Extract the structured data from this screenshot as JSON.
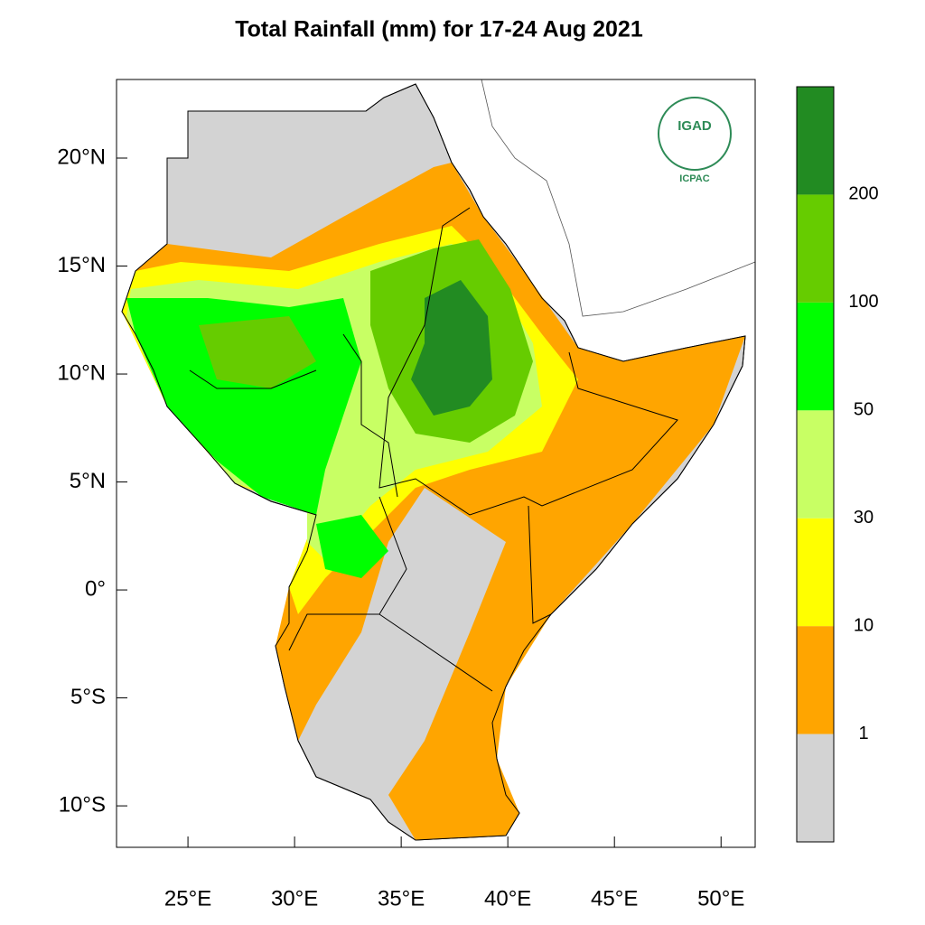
{
  "map": {
    "title": "Total Rainfall (mm) for 17-24 Aug 2021",
    "xlim": [
      21.65,
      51.6
    ],
    "ylim": [
      -11.92,
      23.64
    ],
    "xticks": [
      {
        "value": 25,
        "label": "25°E"
      },
      {
        "value": 30,
        "label": "30°E"
      },
      {
        "value": 35,
        "label": "35°E"
      },
      {
        "value": 40,
        "label": "40°E"
      },
      {
        "value": 45,
        "label": "45°E"
      },
      {
        "value": 50,
        "label": "50°E"
      }
    ],
    "yticks": [
      {
        "value": 20,
        "label": "20°N"
      },
      {
        "value": 15,
        "label": "15°N"
      },
      {
        "value": 10,
        "label": "10°N"
      },
      {
        "value": 5,
        "label": "5°N"
      },
      {
        "value": 0,
        "label": "0°"
      },
      {
        "value": -5,
        "label": "5°S"
      },
      {
        "value": -10,
        "label": "10°S"
      }
    ],
    "logo": {
      "name": "IGAD",
      "caption": "ICPAC"
    }
  },
  "colorbar": {
    "levels": [
      1,
      10,
      30,
      50,
      100,
      200
    ],
    "colors": [
      "#d3d3d3",
      "#ffa500",
      "#ffff00",
      "#c8ff64",
      "#00ff00",
      "#66cc00",
      "#228b22"
    ]
  }
}
